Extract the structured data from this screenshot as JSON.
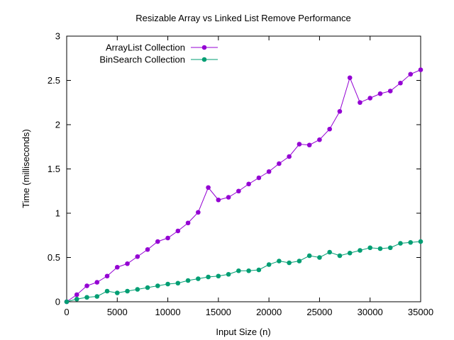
{
  "chart_data": {
    "type": "line",
    "title": "Resizable Array vs Linked List Remove Performance",
    "xlabel": "Input Size (n)",
    "ylabel": "Time (milliseconds)",
    "xlim": [
      0,
      35000
    ],
    "ylim": [
      0,
      3
    ],
    "xticks": [
      0,
      5000,
      10000,
      15000,
      20000,
      25000,
      30000,
      35000
    ],
    "yticks": [
      0,
      0.5,
      1,
      1.5,
      2,
      2.5,
      3
    ],
    "xtick_labels": [
      "0",
      "5000",
      "10000",
      "15000",
      "20000",
      "25000",
      "30000",
      "35000"
    ],
    "ytick_labels": [
      "0",
      "0.5",
      "1",
      "1.5",
      "2",
      "2.5",
      "3"
    ],
    "grid": false,
    "legend_position": "top-left",
    "x": [
      0,
      1000,
      2000,
      3000,
      4000,
      5000,
      6000,
      7000,
      8000,
      9000,
      10000,
      11000,
      12000,
      13000,
      14000,
      15000,
      16000,
      17000,
      18000,
      19000,
      20000,
      21000,
      22000,
      23000,
      24000,
      25000,
      26000,
      27000,
      28000,
      29000,
      30000,
      31000,
      32000,
      33000,
      34000,
      35000
    ],
    "series": [
      {
        "name": "ArrayList Collection",
        "color": "#9400d3",
        "values": [
          0.0,
          0.08,
          0.18,
          0.22,
          0.29,
          0.39,
          0.43,
          0.51,
          0.59,
          0.68,
          0.72,
          0.8,
          0.89,
          1.01,
          1.29,
          1.15,
          1.18,
          1.25,
          1.33,
          1.4,
          1.47,
          1.56,
          1.64,
          1.78,
          1.77,
          1.83,
          1.95,
          2.15,
          2.53,
          2.25,
          2.3,
          2.35,
          2.38,
          2.47,
          2.57,
          2.62
        ]
      },
      {
        "name": "BinSearch Collection",
        "color": "#009e73",
        "values": [
          0.0,
          0.03,
          0.05,
          0.06,
          0.12,
          0.1,
          0.12,
          0.14,
          0.16,
          0.18,
          0.2,
          0.21,
          0.24,
          0.26,
          0.28,
          0.29,
          0.31,
          0.35,
          0.35,
          0.36,
          0.42,
          0.46,
          0.44,
          0.46,
          0.52,
          0.5,
          0.56,
          0.52,
          0.55,
          0.58,
          0.61,
          0.6,
          0.61,
          0.66,
          0.67,
          0.68
        ]
      }
    ]
  }
}
